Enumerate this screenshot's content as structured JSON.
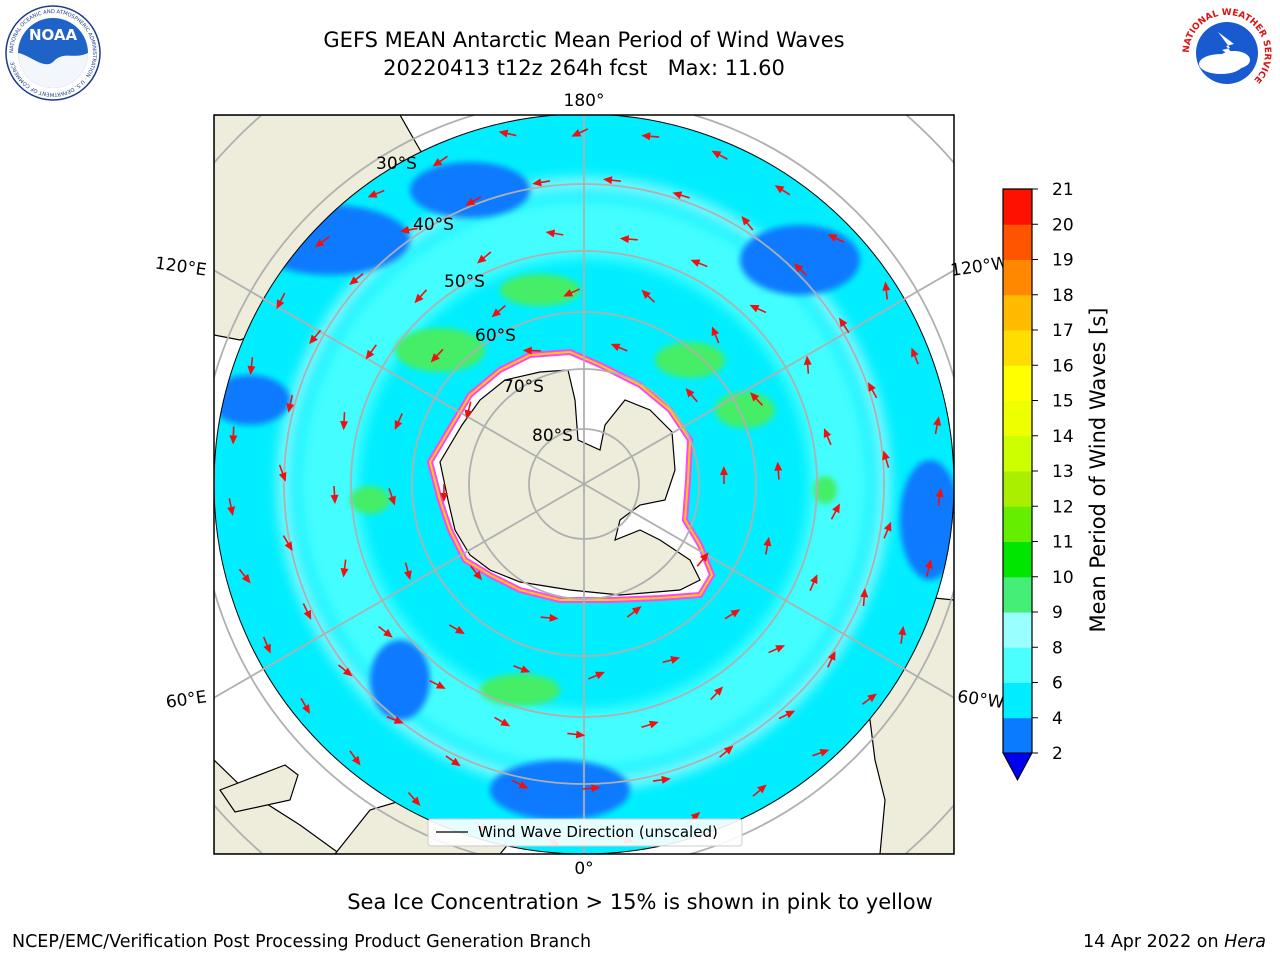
{
  "header": {
    "title_line1": "GEFS MEAN Antarctic Mean Period of Wind Waves",
    "title_line2": "20220413 t12z 264h fcst   Max: 11.60"
  },
  "logos": {
    "left_text": "NOAA",
    "left_ring_text": "NATIONAL OCEANIC AND ATMOSPHERIC ADMINISTRATION · U.S. DEPARTMENT OF COMMERCE",
    "right_ring_text": "NATIONAL WEATHER SERVICE"
  },
  "map": {
    "longitude_labels": [
      "180°",
      "120°E",
      "120°W",
      "60°E",
      "60°W",
      "0°"
    ],
    "latitude_labels": [
      "30°S",
      "40°S",
      "50°S",
      "60°S",
      "70°S",
      "80°S"
    ],
    "legend_label": "Wind Wave Direction (unscaled)",
    "colors": {
      "land": "#eeecda",
      "ocean_base": "#00eeff",
      "period_low": "#0a7aff",
      "period_mid": "#4cffff",
      "period_high": "#44ee66",
      "sea_ice_edge": [
        "#ff44ff",
        "#ffd000"
      ],
      "arrow": "#ee1111"
    }
  },
  "colorbar": {
    "ticks": [
      "2",
      "4",
      "6",
      "8",
      "9",
      "10",
      "11",
      "12",
      "13",
      "14",
      "15",
      "16",
      "17",
      "18",
      "19",
      "20",
      "21"
    ],
    "colors": [
      "#0a7aff",
      "#00eeff",
      "#4cffff",
      "#99ffff",
      "#44ee77",
      "#00e600",
      "#66ee00",
      "#aaee00",
      "#ccff00",
      "#eeff00",
      "#ffff00",
      "#ffdd00",
      "#ffbb00",
      "#ff8800",
      "#ff5500",
      "#ff1100"
    ],
    "extend_color": "#0000ee",
    "label": "Mean Period of Wind Waves [s]"
  },
  "caption": "Sea Ice Concentration > 15% is shown in pink to yellow",
  "footer": {
    "left": "NCEP/EMC/Verification Post Processing Product Generation Branch",
    "right_date": "14 Apr 2022 on ",
    "right_host": "Hera"
  }
}
